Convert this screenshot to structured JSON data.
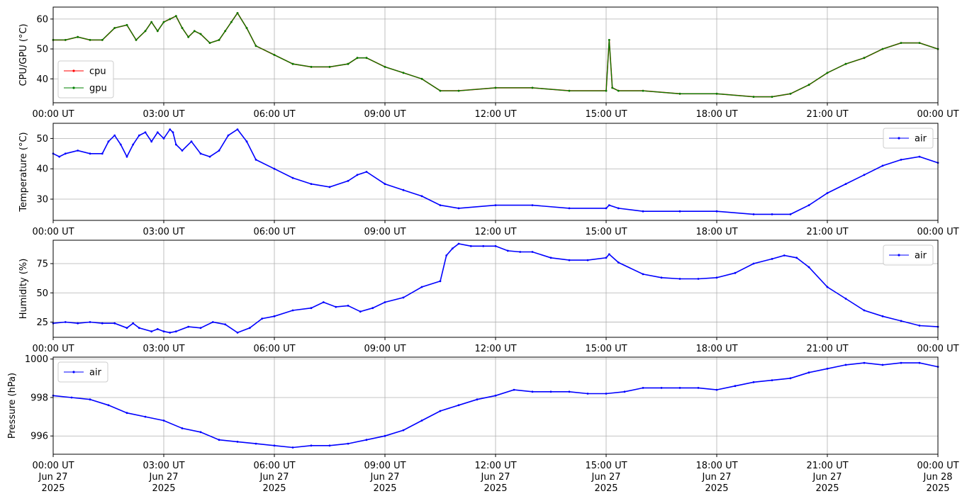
{
  "chart_data": [
    {
      "type": "line",
      "ylabel": "CPU/GPU (°C)",
      "ylim": [
        32,
        64
      ],
      "yticks": [
        40,
        50,
        60
      ],
      "xlim": [
        "00:00",
        "24:00"
      ],
      "grid": true,
      "legend_position": "lower-left",
      "series": [
        {
          "name": "cpu",
          "color": "#ff0000",
          "x": [
            "00:00",
            "00:20",
            "00:40",
            "01:00",
            "01:20",
            "01:40",
            "02:00",
            "02:15",
            "02:30",
            "02:40",
            "02:50",
            "03:00",
            "03:10",
            "03:20",
            "03:30",
            "03:40",
            "03:50",
            "04:00",
            "04:15",
            "04:30",
            "04:40",
            "04:50",
            "05:00",
            "05:15",
            "05:30",
            "06:00",
            "06:30",
            "07:00",
            "07:30",
            "08:00",
            "08:15",
            "08:30",
            "09:00",
            "09:30",
            "10:00",
            "10:30",
            "11:00",
            "12:00",
            "13:00",
            "14:00",
            "15:00",
            "15:05",
            "15:10",
            "15:20",
            "16:00",
            "17:00",
            "18:00",
            "19:00",
            "19:30",
            "20:00",
            "20:30",
            "21:00",
            "21:30",
            "22:00",
            "22:30",
            "23:00",
            "23:30",
            "24:00"
          ],
          "y": [
            53,
            53,
            54,
            53,
            53,
            57,
            58,
            53,
            56,
            59,
            56,
            59,
            60,
            61,
            57,
            54,
            56,
            55,
            52,
            53,
            56,
            59,
            62,
            57,
            51,
            48,
            45,
            44,
            44,
            45,
            47,
            47,
            44,
            42,
            40,
            36,
            36,
            37,
            37,
            36,
            36,
            53,
            37,
            36,
            36,
            35,
            35,
            34,
            34,
            35,
            38,
            42,
            45,
            47,
            50,
            52,
            52,
            50
          ]
        },
        {
          "name": "gpu",
          "color": "#008000",
          "x": [
            "00:00",
            "00:20",
            "00:40",
            "01:00",
            "01:20",
            "01:40",
            "02:00",
            "02:15",
            "02:30",
            "02:40",
            "02:50",
            "03:00",
            "03:10",
            "03:20",
            "03:30",
            "03:40",
            "03:50",
            "04:00",
            "04:15",
            "04:30",
            "04:40",
            "04:50",
            "05:00",
            "05:15",
            "05:30",
            "06:00",
            "06:30",
            "07:00",
            "07:30",
            "08:00",
            "08:15",
            "08:30",
            "09:00",
            "09:30",
            "10:00",
            "10:30",
            "11:00",
            "12:00",
            "13:00",
            "14:00",
            "15:00",
            "15:05",
            "15:10",
            "15:20",
            "16:00",
            "17:00",
            "18:00",
            "19:00",
            "19:30",
            "20:00",
            "20:30",
            "21:00",
            "21:30",
            "22:00",
            "22:30",
            "23:00",
            "23:30",
            "24:00"
          ],
          "y": [
            53,
            53,
            54,
            53,
            53,
            57,
            58,
            53,
            56,
            59,
            56,
            59,
            60,
            61,
            57,
            54,
            56,
            55,
            52,
            53,
            56,
            59,
            62,
            57,
            51,
            48,
            45,
            44,
            44,
            45,
            47,
            47,
            44,
            42,
            40,
            36,
            36,
            37,
            37,
            36,
            36,
            53,
            37,
            36,
            36,
            35,
            35,
            34,
            34,
            35,
            38,
            42,
            45,
            47,
            50,
            52,
            52,
            50
          ]
        }
      ]
    },
    {
      "type": "line",
      "ylabel": "Temperature (°C)",
      "ylim": [
        23,
        55
      ],
      "yticks": [
        30,
        40,
        50
      ],
      "xlim": [
        "00:00",
        "24:00"
      ],
      "grid": true,
      "legend_position": "top-right",
      "series": [
        {
          "name": "air",
          "color": "#0000ff",
          "x": [
            "00:00",
            "00:10",
            "00:20",
            "00:40",
            "01:00",
            "01:20",
            "01:30",
            "01:40",
            "01:50",
            "02:00",
            "02:10",
            "02:20",
            "02:30",
            "02:40",
            "02:50",
            "03:00",
            "03:10",
            "03:15",
            "03:20",
            "03:30",
            "03:45",
            "04:00",
            "04:15",
            "04:30",
            "04:45",
            "05:00",
            "05:15",
            "05:30",
            "06:00",
            "06:30",
            "07:00",
            "07:30",
            "08:00",
            "08:15",
            "08:30",
            "09:00",
            "09:30",
            "10:00",
            "10:30",
            "11:00",
            "12:00",
            "13:00",
            "14:00",
            "15:00",
            "15:05",
            "15:20",
            "16:00",
            "17:00",
            "18:00",
            "19:00",
            "19:30",
            "20:00",
            "20:30",
            "21:00",
            "21:30",
            "22:00",
            "22:30",
            "23:00",
            "23:30",
            "24:00"
          ],
          "y": [
            45,
            44,
            45,
            46,
            45,
            45,
            49,
            51,
            48,
            44,
            48,
            51,
            52,
            49,
            52,
            50,
            53,
            52,
            48,
            46,
            49,
            45,
            44,
            46,
            51,
            53,
            49,
            43,
            40,
            37,
            35,
            34,
            36,
            38,
            39,
            35,
            33,
            31,
            28,
            27,
            28,
            28,
            27,
            27,
            28,
            27,
            26,
            26,
            26,
            25,
            25,
            25,
            28,
            32,
            35,
            38,
            41,
            43,
            44,
            42
          ]
        }
      ]
    },
    {
      "type": "line",
      "ylabel": "Humidity (%)",
      "ylim": [
        12,
        95
      ],
      "yticks": [
        25,
        50,
        75
      ],
      "xlim": [
        "00:00",
        "24:00"
      ],
      "grid": true,
      "legend_position": "top-right",
      "series": [
        {
          "name": "air",
          "color": "#0000ff",
          "x": [
            "00:00",
            "00:20",
            "00:40",
            "01:00",
            "01:20",
            "01:40",
            "02:00",
            "02:10",
            "02:20",
            "02:40",
            "02:50",
            "03:00",
            "03:10",
            "03:20",
            "03:40",
            "04:00",
            "04:20",
            "04:40",
            "05:00",
            "05:20",
            "05:40",
            "06:00",
            "06:30",
            "07:00",
            "07:20",
            "07:40",
            "08:00",
            "08:20",
            "08:40",
            "09:00",
            "09:30",
            "10:00",
            "10:30",
            "10:40",
            "10:50",
            "11:00",
            "11:20",
            "11:40",
            "12:00",
            "12:20",
            "12:40",
            "13:00",
            "13:30",
            "14:00",
            "14:30",
            "15:00",
            "15:05",
            "15:20",
            "16:00",
            "16:30",
            "17:00",
            "17:30",
            "18:00",
            "18:30",
            "19:00",
            "19:30",
            "19:50",
            "20:10",
            "20:30",
            "21:00",
            "21:30",
            "22:00",
            "22:30",
            "23:00",
            "23:30",
            "24:00"
          ],
          "y": [
            24,
            25,
            24,
            25,
            24,
            24,
            20,
            24,
            20,
            17,
            19,
            17,
            16,
            17,
            21,
            20,
            25,
            23,
            16,
            20,
            28,
            30,
            35,
            37,
            42,
            38,
            39,
            34,
            37,
            42,
            46,
            55,
            60,
            82,
            88,
            92,
            90,
            90,
            90,
            86,
            85,
            85,
            80,
            78,
            78,
            80,
            83,
            76,
            66,
            63,
            62,
            62,
            63,
            67,
            75,
            79,
            82,
            80,
            72,
            55,
            45,
            35,
            30,
            26,
            22,
            21
          ]
        }
      ]
    },
    {
      "type": "line",
      "ylabel": "Pressure (hPa)",
      "ylim": [
        995.05,
        1000.1
      ],
      "yticks": [
        996,
        998,
        1000
      ],
      "xlim": [
        "00:00",
        "24:00"
      ],
      "grid": true,
      "legend_position": "top-left",
      "series": [
        {
          "name": "air",
          "color": "#0000ff",
          "x": [
            "00:00",
            "00:30",
            "01:00",
            "01:30",
            "02:00",
            "02:30",
            "03:00",
            "03:30",
            "04:00",
            "04:30",
            "05:00",
            "05:30",
            "06:00",
            "06:30",
            "07:00",
            "07:30",
            "08:00",
            "08:30",
            "09:00",
            "09:30",
            "10:00",
            "10:30",
            "11:00",
            "11:30",
            "12:00",
            "12:30",
            "13:00",
            "13:30",
            "14:00",
            "14:30",
            "15:00",
            "15:30",
            "16:00",
            "16:30",
            "17:00",
            "17:30",
            "18:00",
            "18:30",
            "19:00",
            "19:30",
            "20:00",
            "20:30",
            "21:00",
            "21:30",
            "22:00",
            "22:30",
            "23:00",
            "23:30",
            "24:00"
          ],
          "y": [
            998.1,
            998.0,
            997.9,
            997.6,
            997.2,
            997.0,
            996.8,
            996.4,
            996.2,
            995.8,
            995.7,
            995.6,
            995.5,
            995.4,
            995.5,
            995.5,
            995.6,
            995.8,
            996.0,
            996.3,
            996.8,
            997.3,
            997.6,
            997.9,
            998.1,
            998.4,
            998.3,
            998.3,
            998.3,
            998.2,
            998.2,
            998.3,
            998.5,
            998.5,
            998.5,
            998.5,
            998.4,
            998.6,
            998.8,
            998.9,
            999.0,
            999.3,
            999.5,
            999.7,
            999.8,
            999.7,
            999.8,
            999.8,
            999.6
          ]
        }
      ]
    }
  ],
  "x_tick_labels": [
    "00:00 UT",
    "03:00 UT",
    "06:00 UT",
    "09:00 UT",
    "12:00 UT",
    "15:00 UT",
    "18:00 UT",
    "21:00 UT",
    "00:00 UT"
  ],
  "x_tick_dates": [
    "Jun 27",
    "Jun 27",
    "Jun 27",
    "Jun 27",
    "Jun 27",
    "Jun 27",
    "Jun 27",
    "Jun 27",
    "Jun 28"
  ],
  "x_tick_year": "2025"
}
